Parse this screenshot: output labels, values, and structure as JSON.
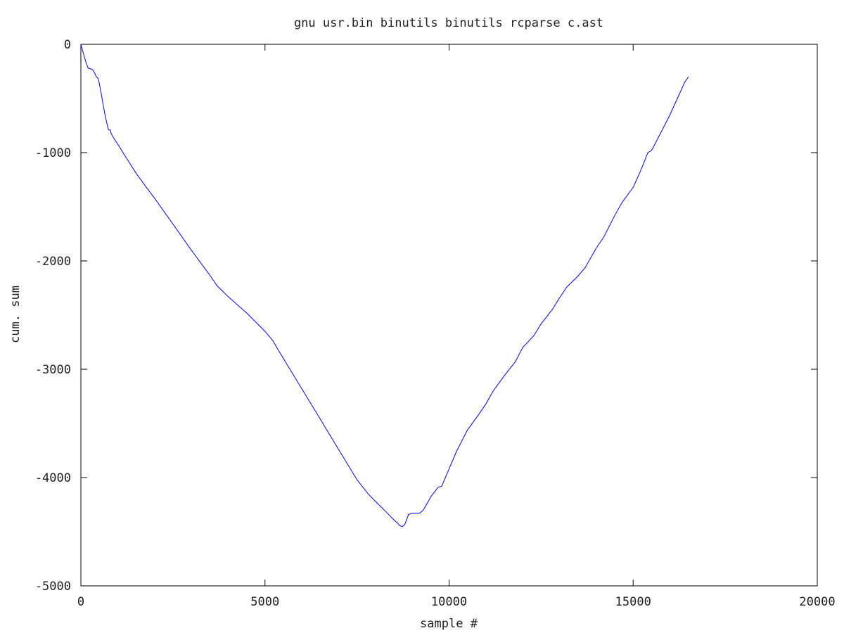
{
  "chart_data": {
    "type": "line",
    "title": "gnu usr.bin binutils binutils rcparse c.ast",
    "xlabel": "sample #",
    "ylabel": "cum. sum",
    "xlim": [
      0,
      20000
    ],
    "ylim": [
      -5000,
      0
    ],
    "xticks": [
      0,
      5000,
      10000,
      15000,
      20000
    ],
    "yticks": [
      0,
      -1000,
      -2000,
      -3000,
      -4000,
      -5000
    ],
    "xtick_labels": [
      "0",
      "5000",
      "10000",
      "15000",
      "20000"
    ],
    "ytick_labels": [
      "0",
      "-1000",
      "-2000",
      "-3000",
      "-4000",
      "-5000"
    ],
    "grid": false,
    "legend": "none",
    "series": [
      {
        "color": "#0000ff",
        "points": [
          [
            0,
            0
          ],
          [
            50,
            -60
          ],
          [
            100,
            -120
          ],
          [
            150,
            -180
          ],
          [
            200,
            -220
          ],
          [
            250,
            -225
          ],
          [
            300,
            -230
          ],
          [
            350,
            -250
          ],
          [
            380,
            -270
          ],
          [
            420,
            -300
          ],
          [
            460,
            -310
          ],
          [
            500,
            -360
          ],
          [
            550,
            -450
          ],
          [
            600,
            -550
          ],
          [
            650,
            -640
          ],
          [
            700,
            -720
          ],
          [
            750,
            -790
          ],
          [
            800,
            -790
          ],
          [
            820,
            -820
          ],
          [
            850,
            -840
          ],
          [
            900,
            -870
          ],
          [
            1000,
            -920
          ],
          [
            1200,
            -1030
          ],
          [
            1500,
            -1190
          ],
          [
            1800,
            -1330
          ],
          [
            2000,
            -1420
          ],
          [
            2500,
            -1660
          ],
          [
            3000,
            -1900
          ],
          [
            3500,
            -2130
          ],
          [
            3700,
            -2230
          ],
          [
            4000,
            -2330
          ],
          [
            4500,
            -2480
          ],
          [
            5000,
            -2650
          ],
          [
            5200,
            -2730
          ],
          [
            5500,
            -2900
          ],
          [
            6000,
            -3180
          ],
          [
            6500,
            -3460
          ],
          [
            7000,
            -3740
          ],
          [
            7500,
            -4020
          ],
          [
            7800,
            -4150
          ],
          [
            8000,
            -4220
          ],
          [
            8300,
            -4320
          ],
          [
            8500,
            -4390
          ],
          [
            8600,
            -4420
          ],
          [
            8650,
            -4440
          ],
          [
            8700,
            -4450
          ],
          [
            8750,
            -4450
          ],
          [
            8800,
            -4430
          ],
          [
            8900,
            -4340
          ],
          [
            9000,
            -4330
          ],
          [
            9100,
            -4330
          ],
          [
            9200,
            -4330
          ],
          [
            9300,
            -4300
          ],
          [
            9500,
            -4180
          ],
          [
            9700,
            -4090
          ],
          [
            9800,
            -4080
          ],
          [
            10000,
            -3920
          ],
          [
            10200,
            -3760
          ],
          [
            10500,
            -3560
          ],
          [
            10800,
            -3420
          ],
          [
            11000,
            -3320
          ],
          [
            11200,
            -3200
          ],
          [
            11500,
            -3060
          ],
          [
            11800,
            -2930
          ],
          [
            12000,
            -2800
          ],
          [
            12300,
            -2690
          ],
          [
            12500,
            -2580
          ],
          [
            12800,
            -2450
          ],
          [
            13000,
            -2340
          ],
          [
            13200,
            -2240
          ],
          [
            13500,
            -2140
          ],
          [
            13700,
            -2060
          ],
          [
            14000,
            -1880
          ],
          [
            14200,
            -1780
          ],
          [
            14500,
            -1580
          ],
          [
            14700,
            -1460
          ],
          [
            15000,
            -1320
          ],
          [
            15200,
            -1170
          ],
          [
            15400,
            -1000
          ],
          [
            15500,
            -980
          ],
          [
            15700,
            -850
          ],
          [
            16000,
            -650
          ],
          [
            16200,
            -500
          ],
          [
            16400,
            -350
          ],
          [
            16500,
            -300
          ]
        ]
      }
    ]
  }
}
